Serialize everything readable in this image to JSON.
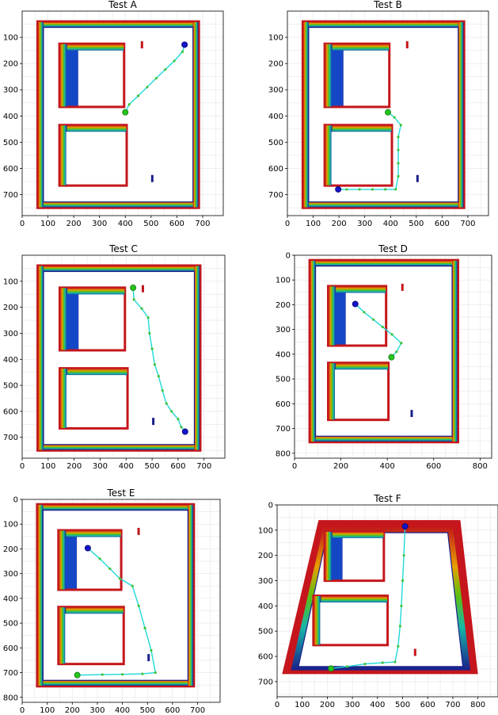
{
  "chart_data": [
    {
      "type": "line",
      "title": "Test A",
      "xlabel": "",
      "ylabel": "",
      "xlim": [
        0,
        780
      ],
      "ylim": [
        780,
        0
      ],
      "xticks": [
        0,
        100,
        200,
        300,
        400,
        500,
        600,
        700
      ],
      "yticks": [
        100,
        200,
        300,
        400,
        500,
        600,
        700
      ],
      "grid": true,
      "series": [
        {
          "x": [
            630,
            622,
            590,
            555,
            520,
            485,
            450,
            415,
            400
          ],
          "y": [
            128,
            155,
            190,
            223,
            256,
            290,
            323,
            356,
            386
          ]
        }
      ],
      "start": {
        "x": 400,
        "y": 386
      },
      "goal": {
        "x": 630,
        "y": 128
      }
    },
    {
      "type": "line",
      "title": "Test B",
      "xlabel": "",
      "ylabel": "",
      "xlim": [
        0,
        780
      ],
      "ylim": [
        780,
        0
      ],
      "xticks": [
        0,
        100,
        200,
        300,
        400,
        500,
        600,
        700
      ],
      "yticks": [
        100,
        200,
        300,
        400,
        500,
        600,
        700
      ],
      "grid": true,
      "series": [
        {
          "x": [
            390,
            415,
            440,
            430,
            430,
            430,
            430,
            420,
            380,
            330,
            280,
            230,
            197
          ],
          "y": [
            386,
            405,
            435,
            480,
            530,
            580,
            630,
            680,
            680,
            680,
            680,
            680,
            680
          ]
        }
      ],
      "start": {
        "x": 390,
        "y": 386
      },
      "goal": {
        "x": 197,
        "y": 680
      }
    },
    {
      "type": "line",
      "title": "Test C",
      "xlabel": "",
      "ylabel": "",
      "xlim": [
        0,
        780
      ],
      "ylim": [
        780,
        0
      ],
      "xticks": [
        0,
        100,
        200,
        300,
        400,
        500,
        600,
        700
      ],
      "yticks": [
        100,
        200,
        300,
        400,
        500,
        600,
        700
      ],
      "grid": true,
      "series": [
        {
          "x": [
            427,
            430,
            460,
            485,
            490,
            500,
            510,
            525,
            540,
            555,
            575,
            600,
            612,
            627
          ],
          "y": [
            125,
            170,
            205,
            240,
            300,
            360,
            420,
            465,
            520,
            570,
            600,
            630,
            660,
            678
          ]
        }
      ],
      "start": {
        "x": 427,
        "y": 125
      },
      "goal": {
        "x": 627,
        "y": 678
      }
    },
    {
      "type": "line",
      "title": "Test D",
      "xlabel": "",
      "ylabel": "",
      "xlim": [
        0,
        850
      ],
      "ylim": [
        820,
        0
      ],
      "xticks": [
        0,
        200,
        400,
        600,
        800
      ],
      "yticks": [
        0,
        100,
        200,
        300,
        400,
        500,
        600,
        700,
        800
      ],
      "grid": true,
      "series": [
        {
          "x": [
            262,
            300,
            340,
            380,
            420,
            460,
            440,
            418
          ],
          "y": [
            197,
            230,
            260,
            290,
            320,
            355,
            390,
            412
          ]
        }
      ],
      "start": {
        "x": 418,
        "y": 412
      },
      "goal": {
        "x": 262,
        "y": 197
      }
    },
    {
      "type": "line",
      "title": "Test E",
      "xlabel": "",
      "ylabel": "",
      "xlim": [
        0,
        790
      ],
      "ylim": [
        820,
        0
      ],
      "xticks": [
        0,
        100,
        200,
        300,
        400,
        500,
        600,
        700
      ],
      "yticks": [
        0,
        100,
        200,
        300,
        400,
        500,
        600,
        700,
        800
      ],
      "grid": true,
      "series": [
        {
          "x": [
            262,
            310,
            350,
            390,
            440,
            465,
            490,
            515,
            532,
            480,
            400,
            320,
            220
          ],
          "y": [
            197,
            240,
            280,
            320,
            350,
            430,
            520,
            610,
            700,
            705,
            707,
            708,
            710
          ]
        }
      ],
      "start": {
        "x": 220,
        "y": 710
      },
      "goal": {
        "x": 262,
        "y": 197
      }
    },
    {
      "type": "line",
      "title": "Test F",
      "xlabel": "",
      "ylabel": "",
      "xlim": [
        0,
        880
      ],
      "ylim": [
        760,
        0
      ],
      "xticks": [
        0,
        100,
        200,
        300,
        400,
        500,
        600,
        700,
        800
      ],
      "yticks": [
        0,
        100,
        200,
        300,
        400,
        500,
        600,
        700
      ],
      "grid": true,
      "series": [
        {
          "x": [
            510,
            505,
            500,
            495,
            490,
            482,
            470,
            420,
            350,
            280,
            215
          ],
          "y": [
            85,
            200,
            300,
            400,
            480,
            560,
            622,
            625,
            630,
            640,
            648
          ]
        }
      ],
      "start": {
        "x": 215,
        "y": 648
      },
      "goal": {
        "x": 510,
        "y": 85
      }
    }
  ]
}
